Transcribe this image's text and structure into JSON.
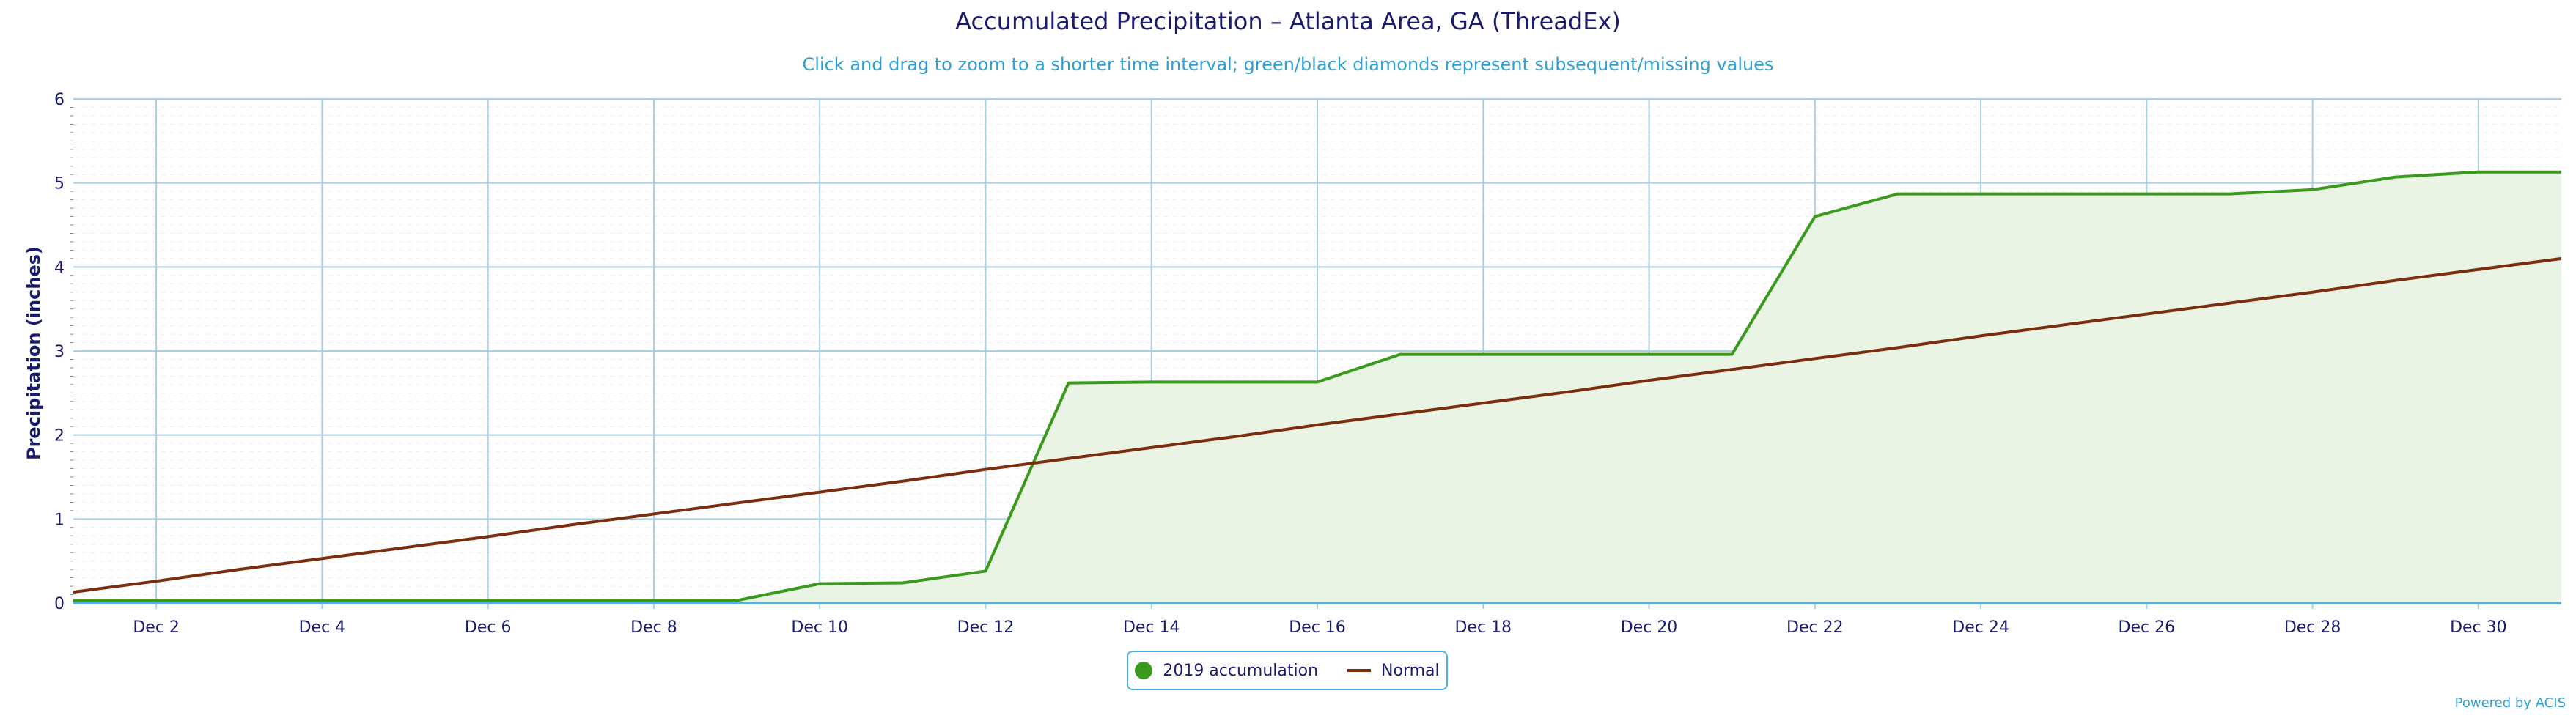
{
  "chart_data": {
    "type": "line",
    "title": "Accumulated Precipitation – Atlanta Area, GA (ThreadEx)",
    "subtitle": "Click and drag to zoom to a shorter time interval; green/black diamonds represent subsequent/missing values",
    "xlabel": "",
    "ylabel": "Precipitation (inches)",
    "ylim": [
      0,
      6
    ],
    "y_ticks": [
      "0",
      "1",
      "2",
      "3",
      "4",
      "5",
      "6"
    ],
    "x_ticks": [
      "Dec 2",
      "Dec 4",
      "Dec 6",
      "Dec 8",
      "Dec 10",
      "Dec 12",
      "Dec 14",
      "Dec 16",
      "Dec 18",
      "Dec 20",
      "Dec 22",
      "Dec 24",
      "Dec 26",
      "Dec 28",
      "Dec 30"
    ],
    "x": [
      "Dec 1",
      "Dec 2",
      "Dec 3",
      "Dec 4",
      "Dec 5",
      "Dec 6",
      "Dec 7",
      "Dec 8",
      "Dec 9",
      "Dec 10",
      "Dec 11",
      "Dec 12",
      "Dec 13",
      "Dec 14",
      "Dec 15",
      "Dec 16",
      "Dec 17",
      "Dec 18",
      "Dec 19",
      "Dec 20",
      "Dec 21",
      "Dec 22",
      "Dec 23",
      "Dec 24",
      "Dec 25",
      "Dec 26",
      "Dec 27",
      "Dec 28",
      "Dec 29",
      "Dec 30",
      "Dec 31"
    ],
    "grid": true,
    "legend_position": "bottom-center",
    "series": [
      {
        "name": "2019 accumulation",
        "type": "area",
        "color": "#3b9a1e",
        "fill": "#eaf4e4",
        "values": [
          0.03,
          0.03,
          0.03,
          0.03,
          0.03,
          0.03,
          0.03,
          0.03,
          0.03,
          0.23,
          0.24,
          0.38,
          2.62,
          2.63,
          2.63,
          2.63,
          2.96,
          2.96,
          2.96,
          2.96,
          2.96,
          4.6,
          4.87,
          4.87,
          4.87,
          4.87,
          4.87,
          4.92,
          5.07,
          5.13,
          5.13
        ]
      },
      {
        "name": "Normal",
        "type": "line",
        "color": "#7a2e0f",
        "values": [
          0.13,
          0.26,
          0.4,
          0.53,
          0.66,
          0.79,
          0.93,
          1.06,
          1.19,
          1.32,
          1.45,
          1.59,
          1.72,
          1.85,
          1.98,
          2.12,
          2.25,
          2.38,
          2.51,
          2.65,
          2.78,
          2.91,
          3.04,
          3.18,
          3.31,
          3.44,
          3.57,
          3.7,
          3.84,
          3.97,
          4.1
        ]
      }
    ]
  },
  "credits": "Powered by ACIS"
}
